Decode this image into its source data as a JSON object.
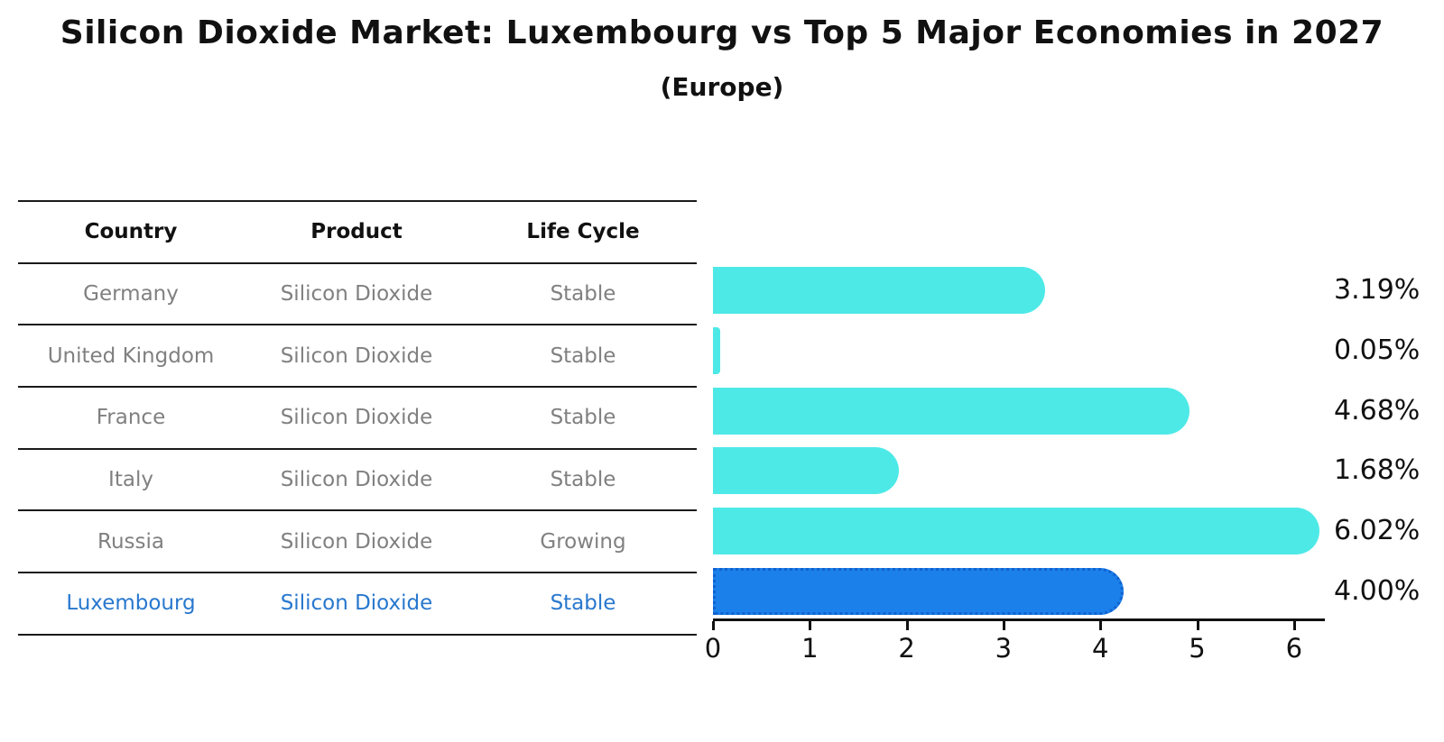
{
  "title": "Silicon Dioxide Market: Luxembourg vs Top 5 Major Economies in 2027",
  "subtitle": "(Europe)",
  "table": {
    "headers": [
      "Country",
      "Product",
      "Life Cycle"
    ],
    "rows": [
      {
        "country": "Germany",
        "product": "Silicon Dioxide",
        "life_cycle": "Stable",
        "highlight": false
      },
      {
        "country": "United Kingdom",
        "product": "Silicon Dioxide",
        "life_cycle": "Stable",
        "highlight": false
      },
      {
        "country": "France",
        "product": "Silicon Dioxide",
        "life_cycle": "Stable",
        "highlight": false
      },
      {
        "country": "Italy",
        "product": "Silicon Dioxide",
        "life_cycle": "Stable",
        "highlight": false
      },
      {
        "country": "Russia",
        "product": "Silicon Dioxide",
        "life_cycle": "Growing",
        "highlight": false
      },
      {
        "country": "Luxembourg",
        "product": "Silicon Dioxide",
        "life_cycle": "Stable",
        "highlight": true
      }
    ]
  },
  "chart_data": {
    "type": "bar",
    "orientation": "horizontal",
    "categories": [
      "Germany",
      "United Kingdom",
      "France",
      "Italy",
      "Russia",
      "Luxembourg"
    ],
    "values": [
      3.19,
      0.05,
      4.68,
      1.68,
      6.02,
      4.0
    ],
    "value_labels": [
      "3.19%",
      "0.05%",
      "4.68%",
      "1.68%",
      "6.02%",
      "4.00%"
    ],
    "highlight_index": 5,
    "title": "Silicon Dioxide Market: Luxembourg vs Top 5 Major Economies in 2027",
    "subtitle": "(Europe)",
    "xlabel": "",
    "ylabel": "",
    "xlim": [
      0,
      6.34
    ],
    "xticks": [
      0,
      1,
      2,
      3,
      4,
      5,
      6
    ],
    "grid": false,
    "legend": false,
    "bar_color": "#4de9e7",
    "highlight_color": "#1c80ea",
    "highlight_text_color": "#2878ce",
    "text_color": "#808080"
  }
}
